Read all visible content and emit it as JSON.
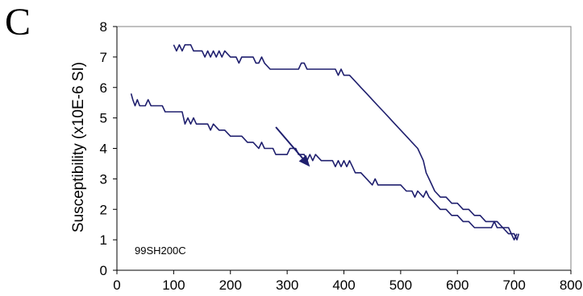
{
  "panel_label": "C",
  "chart_data": {
    "type": "line",
    "title": "",
    "xlabel": "",
    "ylabel": "Susceptibility (x10E-6 SI)",
    "xlim": [
      0,
      800
    ],
    "ylim": [
      0,
      8
    ],
    "xticks": [
      0,
      100,
      200,
      300,
      400,
      500,
      600,
      700,
      800
    ],
    "yticks": [
      0,
      1,
      2,
      3,
      4,
      5,
      6,
      7,
      8
    ],
    "grid": false,
    "legend": "none",
    "line_color": "#1f1f6e",
    "annotation": "99SH200C",
    "arrow": {
      "from": [
        280,
        4.7
      ],
      "to": [
        340,
        3.4
      ]
    },
    "series": [
      {
        "points": [
          [
            100,
            7.4
          ],
          [
            105,
            7.2
          ],
          [
            110,
            7.4
          ],
          [
            115,
            7.2
          ],
          [
            120,
            7.4
          ],
          [
            130,
            7.4
          ],
          [
            135,
            7.2
          ],
          [
            150,
            7.2
          ],
          [
            155,
            7.0
          ],
          [
            160,
            7.2
          ],
          [
            165,
            7.0
          ],
          [
            170,
            7.2
          ],
          [
            175,
            7.0
          ],
          [
            180,
            7.2
          ],
          [
            185,
            7.0
          ],
          [
            190,
            7.2
          ],
          [
            200,
            7.0
          ],
          [
            210,
            7.0
          ],
          [
            215,
            6.8
          ],
          [
            220,
            7.0
          ],
          [
            240,
            7.0
          ],
          [
            245,
            6.8
          ],
          [
            250,
            6.8
          ],
          [
            255,
            7.0
          ],
          [
            260,
            6.8
          ],
          [
            270,
            6.6
          ],
          [
            320,
            6.6
          ],
          [
            325,
            6.8
          ],
          [
            330,
            6.8
          ],
          [
            335,
            6.6
          ],
          [
            385,
            6.6
          ],
          [
            390,
            6.4
          ],
          [
            395,
            6.6
          ],
          [
            400,
            6.4
          ],
          [
            410,
            6.4
          ],
          [
            420,
            6.2
          ],
          [
            430,
            6.0
          ],
          [
            440,
            5.8
          ],
          [
            450,
            5.6
          ],
          [
            460,
            5.4
          ],
          [
            470,
            5.2
          ],
          [
            480,
            5.0
          ],
          [
            490,
            4.8
          ],
          [
            500,
            4.6
          ],
          [
            510,
            4.4
          ],
          [
            520,
            4.2
          ],
          [
            530,
            4.0
          ],
          [
            540,
            3.6
          ],
          [
            545,
            3.2
          ],
          [
            550,
            3.0
          ],
          [
            555,
            2.8
          ],
          [
            560,
            2.6
          ],
          [
            570,
            2.4
          ],
          [
            580,
            2.4
          ],
          [
            590,
            2.2
          ],
          [
            600,
            2.2
          ],
          [
            610,
            2.0
          ],
          [
            620,
            2.0
          ],
          [
            630,
            1.8
          ],
          [
            640,
            1.8
          ],
          [
            650,
            1.6
          ],
          [
            660,
            1.6
          ],
          [
            670,
            1.6
          ],
          [
            680,
            1.4
          ],
          [
            690,
            1.4
          ],
          [
            695,
            1.2
          ],
          [
            700,
            1.0
          ],
          [
            705,
            1.2
          ]
        ]
      },
      {
        "points": [
          [
            25,
            5.8
          ],
          [
            28,
            5.6
          ],
          [
            32,
            5.4
          ],
          [
            36,
            5.6
          ],
          [
            40,
            5.4
          ],
          [
            50,
            5.4
          ],
          [
            55,
            5.6
          ],
          [
            60,
            5.4
          ],
          [
            80,
            5.4
          ],
          [
            85,
            5.2
          ],
          [
            100,
            5.2
          ],
          [
            115,
            5.2
          ],
          [
            120,
            4.8
          ],
          [
            125,
            5.0
          ],
          [
            130,
            4.8
          ],
          [
            135,
            5.0
          ],
          [
            140,
            4.8
          ],
          [
            160,
            4.8
          ],
          [
            165,
            4.6
          ],
          [
            170,
            4.8
          ],
          [
            180,
            4.6
          ],
          [
            190,
            4.6
          ],
          [
            200,
            4.4
          ],
          [
            220,
            4.4
          ],
          [
            230,
            4.2
          ],
          [
            240,
            4.2
          ],
          [
            250,
            4.0
          ],
          [
            255,
            4.2
          ],
          [
            260,
            4.0
          ],
          [
            275,
            4.0
          ],
          [
            280,
            3.8
          ],
          [
            300,
            3.8
          ],
          [
            305,
            4.0
          ],
          [
            315,
            4.0
          ],
          [
            320,
            3.8
          ],
          [
            330,
            3.8
          ],
          [
            335,
            3.6
          ],
          [
            340,
            3.8
          ],
          [
            345,
            3.6
          ],
          [
            350,
            3.8
          ],
          [
            360,
            3.6
          ],
          [
            380,
            3.6
          ],
          [
            385,
            3.4
          ],
          [
            390,
            3.6
          ],
          [
            395,
            3.4
          ],
          [
            400,
            3.6
          ],
          [
            405,
            3.4
          ],
          [
            410,
            3.6
          ],
          [
            415,
            3.4
          ],
          [
            420,
            3.2
          ],
          [
            430,
            3.2
          ],
          [
            440,
            3.0
          ],
          [
            450,
            2.8
          ],
          [
            455,
            3.0
          ],
          [
            460,
            2.8
          ],
          [
            500,
            2.8
          ],
          [
            510,
            2.6
          ],
          [
            520,
            2.6
          ],
          [
            525,
            2.4
          ],
          [
            530,
            2.6
          ],
          [
            540,
            2.4
          ],
          [
            545,
            2.6
          ],
          [
            550,
            2.4
          ],
          [
            560,
            2.2
          ],
          [
            570,
            2.0
          ],
          [
            580,
            2.0
          ],
          [
            590,
            1.8
          ],
          [
            600,
            1.8
          ],
          [
            610,
            1.6
          ],
          [
            620,
            1.6
          ],
          [
            630,
            1.4
          ],
          [
            640,
            1.4
          ],
          [
            650,
            1.4
          ],
          [
            660,
            1.4
          ],
          [
            665,
            1.6
          ],
          [
            670,
            1.4
          ],
          [
            680,
            1.4
          ],
          [
            690,
            1.2
          ],
          [
            700,
            1.2
          ],
          [
            705,
            1.0
          ],
          [
            708,
            1.2
          ]
        ]
      }
    ]
  }
}
